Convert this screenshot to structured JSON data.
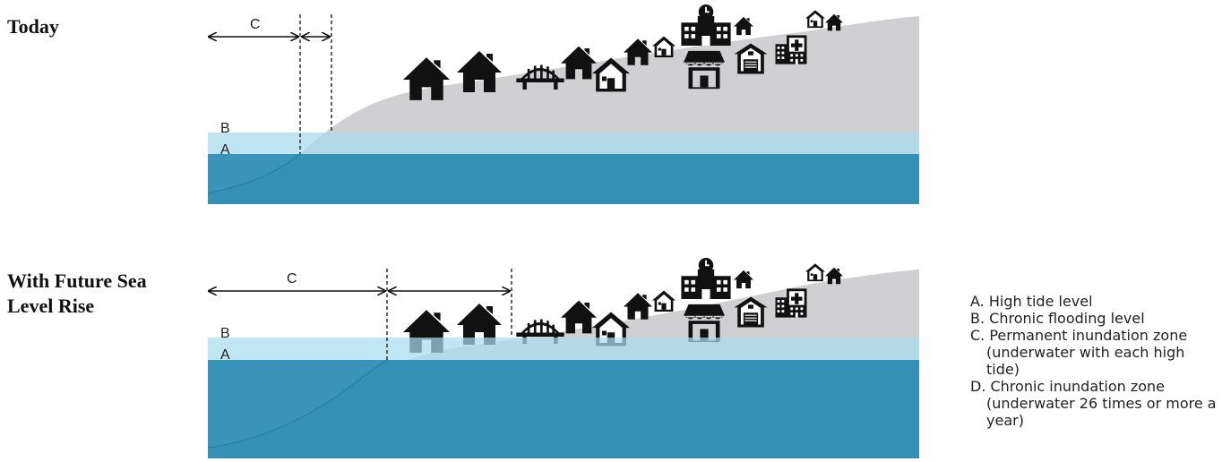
{
  "panels": [
    {
      "title": "Today",
      "level_b": "B",
      "level_a": "A",
      "zone_label": "C"
    },
    {
      "title": "With Future Sea Level Rise",
      "level_b": "B",
      "level_a": "A",
      "zone_label": "C"
    }
  ],
  "legend": [
    "A. High tide level",
    "B. Chronic flooding level",
    "C. Permanent inundation zone (underwater with each high tide)",
    "D. Chronic inundation zone (underwater 26 times or more a year)"
  ],
  "colors": {
    "land": "#d0d0d2",
    "deep_water": "#3490b5",
    "flood_band": "#a9dcee",
    "icons": "#111111"
  },
  "icons": [
    "house-icon",
    "bridge-icon",
    "small-house-icon",
    "school-icon",
    "store-icon",
    "fire-station-icon",
    "hospital-icon"
  ]
}
